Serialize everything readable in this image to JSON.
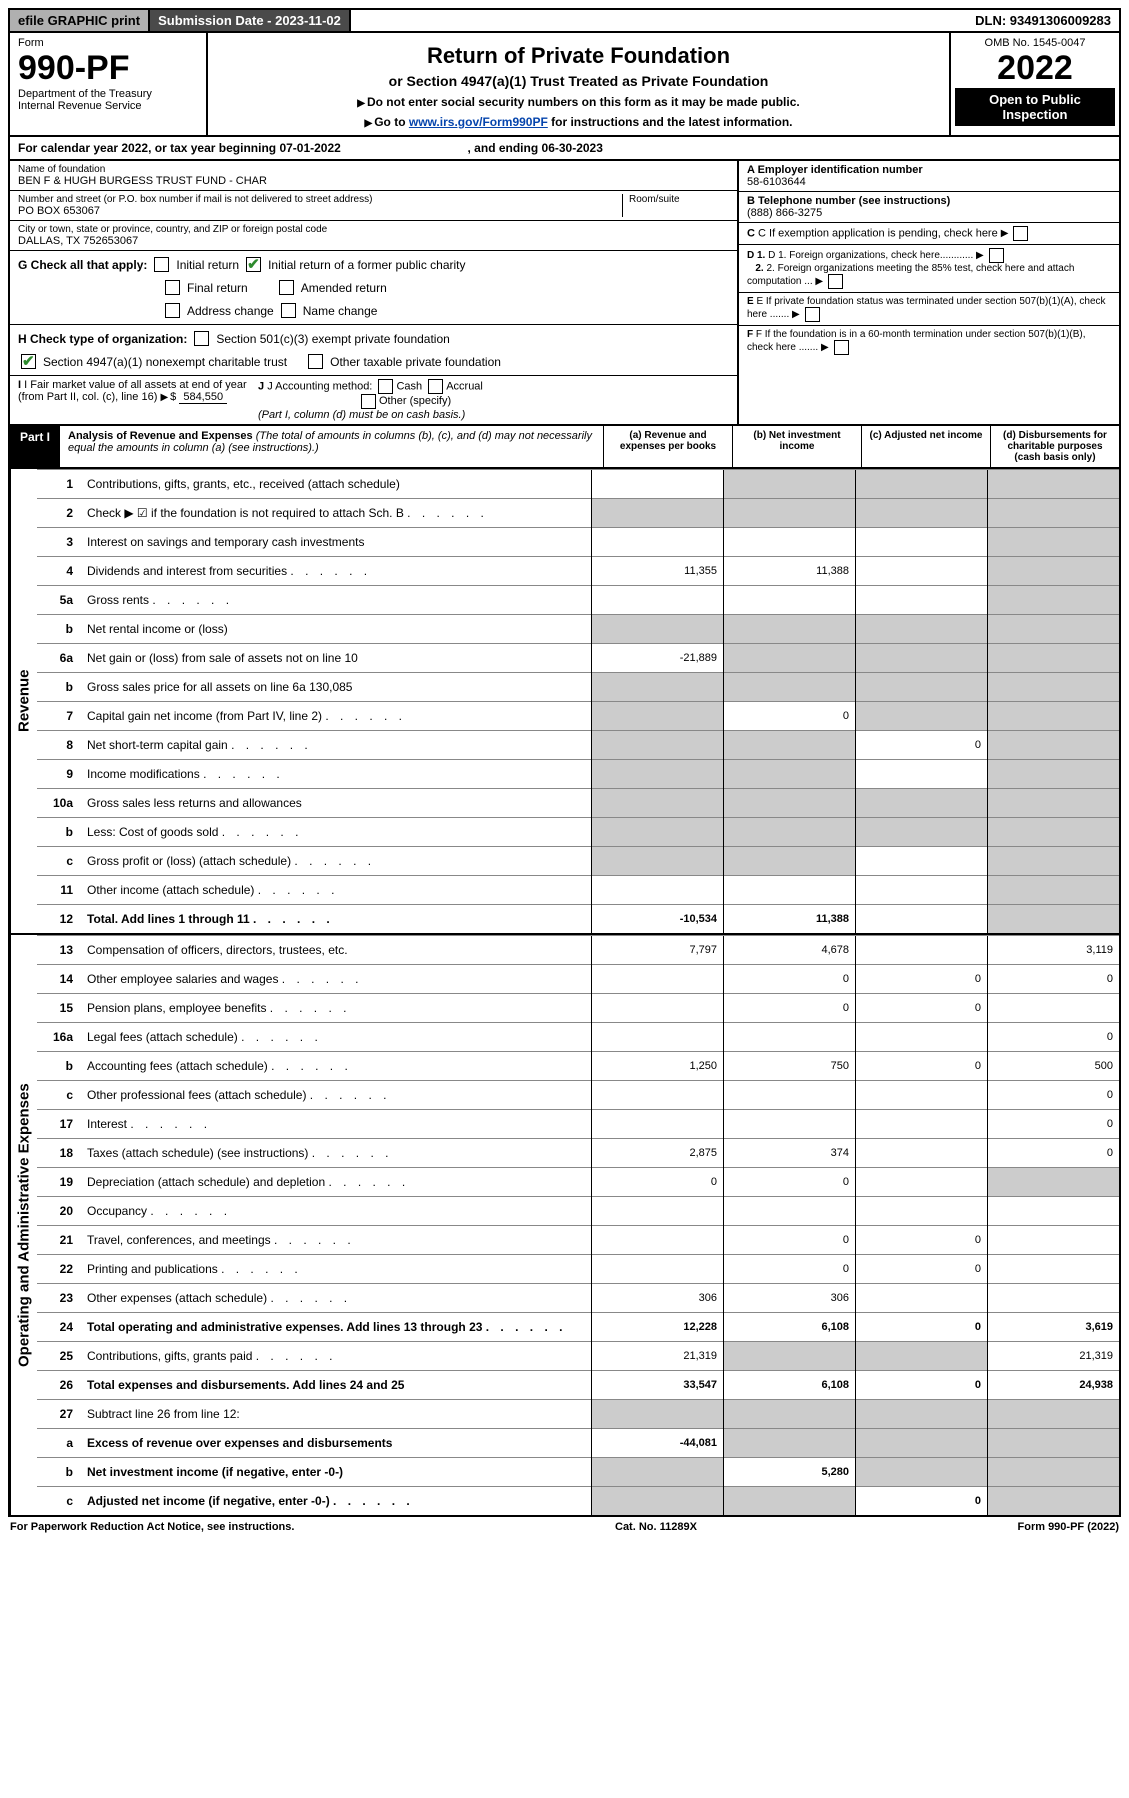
{
  "topbar": {
    "efile": "efile GRAPHIC print",
    "subdate_label": "Submission Date - 2023-11-02",
    "dln": "DLN: 93491306009283"
  },
  "header": {
    "form_label": "Form",
    "form_number": "990-PF",
    "dept": "Department of the Treasury",
    "irs": "Internal Revenue Service",
    "title": "Return of Private Foundation",
    "subtitle": "or Section 4947(a)(1) Trust Treated as Private Foundation",
    "instr1": "Do not enter social security numbers on this form as it may be made public.",
    "instr2_pre": "Go to ",
    "instr2_link": "www.irs.gov/Form990PF",
    "instr2_post": " for instructions and the latest information.",
    "omb": "OMB No. 1545-0047",
    "year": "2022",
    "open": "Open to Public Inspection"
  },
  "calyear": {
    "text_pre": "For calendar year 2022, or tax year beginning 07-01-2022",
    "text_mid": ", and ending 06-30-2023"
  },
  "info": {
    "name_lbl": "Name of foundation",
    "name": "BEN F & HUGH BURGESS TRUST FUND - CHAR",
    "addr_lbl": "Number and street (or P.O. box number if mail is not delivered to street address)",
    "addr": "PO BOX 653067",
    "room_lbl": "Room/suite",
    "city_lbl": "City or town, state or province, country, and ZIP or foreign postal code",
    "city": "DALLAS, TX  752653067",
    "a_lbl": "A Employer identification number",
    "a_val": "58-6103644",
    "b_lbl": "B Telephone number (see instructions)",
    "b_val": "(888) 866-3275",
    "c_lbl": "C If exemption application is pending, check here",
    "d1_lbl": "D 1. Foreign organizations, check here............",
    "d2_lbl": "2. Foreign organizations meeting the 85% test, check here and attach computation ...",
    "e_lbl": "E If private foundation status was terminated under section 507(b)(1)(A), check here .......",
    "f_lbl": "F If the foundation is in a 60-month termination under section 507(b)(1)(B), check here .......",
    "g_lbl": "G Check all that apply:",
    "g_opts": [
      "Initial return",
      "Initial return of a former public charity",
      "Final return",
      "Amended return",
      "Address change",
      "Name change"
    ],
    "h_lbl": "H Check type of organization:",
    "h1": "Section 501(c)(3) exempt private foundation",
    "h2": "Section 4947(a)(1) nonexempt charitable trust",
    "h3": "Other taxable private foundation",
    "i_lbl": "I Fair market value of all assets at end of year (from Part II, col. (c), line 16)",
    "i_val": "584,550",
    "j_lbl": "J Accounting method:",
    "j_opts": [
      "Cash",
      "Accrual",
      "Other (specify)"
    ],
    "j_note": "(Part I, column (d) must be on cash basis.)"
  },
  "part1": {
    "label": "Part I",
    "title": "Analysis of Revenue and Expenses",
    "desc": "(The total of amounts in columns (b), (c), and (d) may not necessarily equal the amounts in column (a) (see instructions).)",
    "col_a": "(a) Revenue and expenses per books",
    "col_b": "(b) Net investment income",
    "col_c": "(c) Adjusted net income",
    "col_d": "(d) Disbursements for charitable purposes (cash basis only)"
  },
  "sides": {
    "revenue": "Revenue",
    "expenses": "Operating and Administrative Expenses"
  },
  "rows": [
    {
      "n": "1",
      "t": "Contributions, gifts, grants, etc., received (attach schedule)",
      "a": "",
      "b": "shade",
      "c": "shade",
      "d": "shade"
    },
    {
      "n": "2",
      "t": "Check ▶ ☑ if the foundation is not required to attach Sch. B",
      "a": "shade",
      "b": "shade",
      "c": "shade",
      "d": "shade",
      "dots": true
    },
    {
      "n": "3",
      "t": "Interest on savings and temporary cash investments",
      "a": "",
      "b": "",
      "c": "",
      "d": "shade"
    },
    {
      "n": "4",
      "t": "Dividends and interest from securities",
      "a": "11,355",
      "b": "11,388",
      "c": "",
      "d": "shade",
      "dots": true
    },
    {
      "n": "5a",
      "t": "Gross rents",
      "a": "",
      "b": "",
      "c": "",
      "d": "shade",
      "dots": true
    },
    {
      "n": "b",
      "t": "Net rental income or (loss)",
      "a": "shade",
      "b": "shade",
      "c": "shade",
      "d": "shade"
    },
    {
      "n": "6a",
      "t": "Net gain or (loss) from sale of assets not on line 10",
      "a": "-21,889",
      "b": "shade",
      "c": "shade",
      "d": "shade"
    },
    {
      "n": "b",
      "t": "Gross sales price for all assets on line 6a            130,085",
      "a": "shade",
      "b": "shade",
      "c": "shade",
      "d": "shade"
    },
    {
      "n": "7",
      "t": "Capital gain net income (from Part IV, line 2)",
      "a": "shade",
      "b": "0",
      "c": "shade",
      "d": "shade",
      "dots": true
    },
    {
      "n": "8",
      "t": "Net short-term capital gain",
      "a": "shade",
      "b": "shade",
      "c": "0",
      "d": "shade",
      "dots": true
    },
    {
      "n": "9",
      "t": "Income modifications",
      "a": "shade",
      "b": "shade",
      "c": "",
      "d": "shade",
      "dots": true
    },
    {
      "n": "10a",
      "t": "Gross sales less returns and allowances",
      "a": "shade",
      "b": "shade",
      "c": "shade",
      "d": "shade"
    },
    {
      "n": "b",
      "t": "Less: Cost of goods sold",
      "a": "shade",
      "b": "shade",
      "c": "shade",
      "d": "shade",
      "dots": true
    },
    {
      "n": "c",
      "t": "Gross profit or (loss) (attach schedule)",
      "a": "shade",
      "b": "shade",
      "c": "",
      "d": "shade",
      "dots": true
    },
    {
      "n": "11",
      "t": "Other income (attach schedule)",
      "a": "",
      "b": "",
      "c": "",
      "d": "shade",
      "dots": true
    },
    {
      "n": "12",
      "t": "Total. Add lines 1 through 11",
      "a": "-10,534",
      "b": "11,388",
      "c": "",
      "d": "shade",
      "bold": true,
      "dots": true
    }
  ],
  "exp_rows": [
    {
      "n": "13",
      "t": "Compensation of officers, directors, trustees, etc.",
      "a": "7,797",
      "b": "4,678",
      "c": "",
      "d": "3,119"
    },
    {
      "n": "14",
      "t": "Other employee salaries and wages",
      "a": "",
      "b": "0",
      "c": "0",
      "d": "0",
      "dots": true
    },
    {
      "n": "15",
      "t": "Pension plans, employee benefits",
      "a": "",
      "b": "0",
      "c": "0",
      "d": "",
      "dots": true
    },
    {
      "n": "16a",
      "t": "Legal fees (attach schedule)",
      "a": "",
      "b": "",
      "c": "",
      "d": "0",
      "dots": true
    },
    {
      "n": "b",
      "t": "Accounting fees (attach schedule)",
      "a": "1,250",
      "b": "750",
      "c": "0",
      "d": "500",
      "dots": true
    },
    {
      "n": "c",
      "t": "Other professional fees (attach schedule)",
      "a": "",
      "b": "",
      "c": "",
      "d": "0",
      "dots": true
    },
    {
      "n": "17",
      "t": "Interest",
      "a": "",
      "b": "",
      "c": "",
      "d": "0",
      "dots": true
    },
    {
      "n": "18",
      "t": "Taxes (attach schedule) (see instructions)",
      "a": "2,875",
      "b": "374",
      "c": "",
      "d": "0",
      "dots": true
    },
    {
      "n": "19",
      "t": "Depreciation (attach schedule) and depletion",
      "a": "0",
      "b": "0",
      "c": "",
      "d": "shade",
      "dots": true
    },
    {
      "n": "20",
      "t": "Occupancy",
      "a": "",
      "b": "",
      "c": "",
      "d": "",
      "dots": true
    },
    {
      "n": "21",
      "t": "Travel, conferences, and meetings",
      "a": "",
      "b": "0",
      "c": "0",
      "d": "",
      "dots": true
    },
    {
      "n": "22",
      "t": "Printing and publications",
      "a": "",
      "b": "0",
      "c": "0",
      "d": "",
      "dots": true
    },
    {
      "n": "23",
      "t": "Other expenses (attach schedule)",
      "a": "306",
      "b": "306",
      "c": "",
      "d": "",
      "dots": true
    },
    {
      "n": "24",
      "t": "Total operating and administrative expenses. Add lines 13 through 23",
      "a": "12,228",
      "b": "6,108",
      "c": "0",
      "d": "3,619",
      "bold": true,
      "dots": true
    },
    {
      "n": "25",
      "t": "Contributions, gifts, grants paid",
      "a": "21,319",
      "b": "shade",
      "c": "shade",
      "d": "21,319",
      "dots": true
    },
    {
      "n": "26",
      "t": "Total expenses and disbursements. Add lines 24 and 25",
      "a": "33,547",
      "b": "6,108",
      "c": "0",
      "d": "24,938",
      "bold": true
    },
    {
      "n": "27",
      "t": "Subtract line 26 from line 12:",
      "a": "shade",
      "b": "shade",
      "c": "shade",
      "d": "shade"
    },
    {
      "n": "a",
      "t": "Excess of revenue over expenses and disbursements",
      "a": "-44,081",
      "b": "shade",
      "c": "shade",
      "d": "shade",
      "bold": true
    },
    {
      "n": "b",
      "t": "Net investment income (if negative, enter -0-)",
      "a": "shade",
      "b": "5,280",
      "c": "shade",
      "d": "shade",
      "bold": true
    },
    {
      "n": "c",
      "t": "Adjusted net income (if negative, enter -0-)",
      "a": "shade",
      "b": "shade",
      "c": "0",
      "d": "shade",
      "bold": true,
      "dots": true
    }
  ],
  "footer": {
    "left": "For Paperwork Reduction Act Notice, see instructions.",
    "mid": "Cat. No. 11289X",
    "right": "Form 990-PF (2022)"
  }
}
